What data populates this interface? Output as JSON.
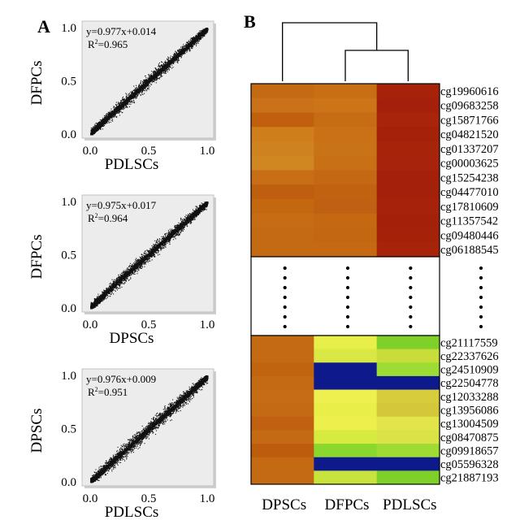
{
  "panel_labels": {
    "a": "A",
    "b": "B"
  },
  "colors": {
    "plot_bg": "#ececec",
    "scatter_point": "#111111",
    "heat_orange": "#c46a12",
    "heat_dark_red": "#a6230a",
    "heat_yellow": "#e8f04a",
    "heat_green": "#7fd12a",
    "heat_blue": "#0e1a8c"
  },
  "chart_data": [
    {
      "type": "scatter",
      "ylabel": "DFPCs",
      "xlabel": "PDLSCs",
      "equation": "y=0.977x+0.014",
      "r2_prefix": "R",
      "r2_sup": "2",
      "r2_value": "=0.965",
      "slope": 0.977,
      "intercept": 0.014,
      "r2": 0.965,
      "xlim": [
        0,
        1
      ],
      "ylim": [
        0,
        1
      ],
      "xticks": [
        "0.0",
        "0.5",
        "1.0"
      ],
      "yticks": [
        "0.0",
        "0.5",
        "1.0"
      ]
    },
    {
      "type": "scatter",
      "ylabel": "DFPCs",
      "xlabel": "DPSCs",
      "equation": "y=0.975x+0.017",
      "r2_prefix": "R",
      "r2_sup": "2",
      "r2_value": "=0.964",
      "slope": 0.975,
      "intercept": 0.017,
      "r2": 0.964,
      "xlim": [
        0,
        1
      ],
      "ylim": [
        0,
        1
      ],
      "xticks": [
        "0.0",
        "0.5",
        "1.0"
      ],
      "yticks": [
        "0.0",
        "0.5",
        "1.0"
      ]
    },
    {
      "type": "scatter",
      "ylabel": "DPSCs",
      "xlabel": "PDLSCs",
      "equation": "y=0.976x+0.009",
      "r2_prefix": "R",
      "r2_sup": "2",
      "r2_value": "=0.951",
      "slope": 0.976,
      "intercept": 0.009,
      "r2": 0.951,
      "xlim": [
        0,
        1
      ],
      "ylim": [
        0,
        1
      ],
      "xticks": [
        "0.0",
        "0.5",
        "1.0"
      ],
      "yticks": [
        "0.0",
        "0.5",
        "1.0"
      ]
    },
    {
      "type": "heatmap",
      "columns": [
        "DPSCs",
        "DFPCs",
        "PDLSCs"
      ],
      "top_rows": [
        "cg19960616",
        "cg09683258",
        "cg15871766",
        "cg04821520",
        "cg01337207",
        "cg00003625",
        "cg15254238",
        "cg04477010",
        "cg17810609",
        "cg11357542",
        "cg09480446",
        "cg06188545"
      ],
      "bottom_rows": [
        "cg21117559",
        "cg22337626",
        "cg24510909",
        "cg22504778",
        "cg12033288",
        "cg13956086",
        "cg13004509",
        "cg08470875",
        "cg09918657",
        "cg05596328",
        "cg21887193"
      ],
      "top_cells": [
        [
          "#c46a12",
          "#c86e14",
          "#a6230a"
        ],
        [
          "#c9721a",
          "#cc7418",
          "#a5200a"
        ],
        [
          "#c0600e",
          "#c66c14",
          "#a8250b"
        ],
        [
          "#d07d1c",
          "#ca7016",
          "#a4220a"
        ],
        [
          "#cf8320",
          "#c97318",
          "#a6240a"
        ],
        [
          "#d08722",
          "#c87016",
          "#a7230b"
        ],
        [
          "#c86e16",
          "#c46814",
          "#a4200a"
        ],
        [
          "#bf5e0e",
          "#c06210",
          "#a3200a"
        ],
        [
          "#c4680f",
          "#c06012",
          "#a6220a"
        ],
        [
          "#c66c14",
          "#c46812",
          "#a3210a"
        ],
        [
          "#c46a12",
          "#c36810",
          "#a5220a"
        ],
        [
          "#c46a12",
          "#c56a13",
          "#a7240b"
        ]
      ],
      "bottom_cells": [
        [
          "#c46a12",
          "#e8ef4a",
          "#7fd12a"
        ],
        [
          "#c46a12",
          "#d9e845",
          "#c8dc3a"
        ],
        [
          "#c16410",
          "#0e1a8c",
          "#9ddc34"
        ],
        [
          "#c46a12",
          "#0e1a8c",
          "#0e1a8c"
        ],
        [
          "#c66c14",
          "#eef050",
          "#d6cc3c"
        ],
        [
          "#c46a12",
          "#e9ee48",
          "#d4c83a"
        ],
        [
          "#c06010",
          "#ecef4c",
          "#e2e44a"
        ],
        [
          "#c46a12",
          "#d6ea40",
          "#dbe246"
        ],
        [
          "#be5c0e",
          "#8ad82e",
          "#9edc34"
        ],
        [
          "#c46a12",
          "#0e1a8c",
          "#0e1a8c"
        ],
        [
          "#c46a12",
          "#c8e43c",
          "#7fd12a"
        ]
      ],
      "dendrogram": "((DFPCs,PDLSCs),DPSCs)"
    }
  ]
}
